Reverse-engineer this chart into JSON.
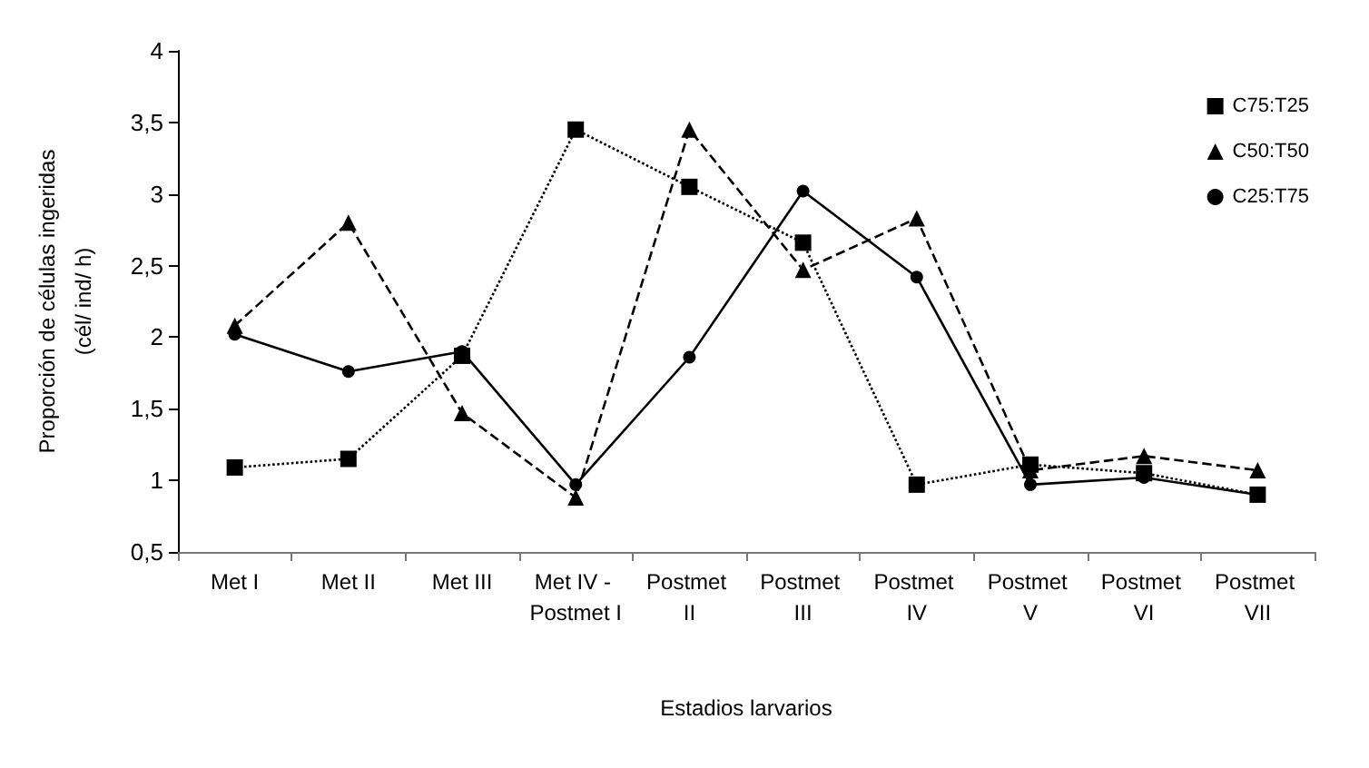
{
  "chart_data": {
    "type": "line",
    "xlabel": "Estadios larvarios",
    "ylabel": "Proporción de células ingeridas\n(cél/ ind/ h)",
    "categories": [
      "Met I",
      "Met II",
      "Met III",
      "Met IV - Postmet I",
      "Postmet II",
      "Postmet III",
      "Postmet IV",
      "Postmet V",
      "Postmet VI",
      "Postmet VII"
    ],
    "series": [
      {
        "name": "C75:T25",
        "color": "#000000",
        "marker": "square",
        "line_style": "dotted",
        "values": [
          1.09,
          1.15,
          1.87,
          3.45,
          3.05,
          2.66,
          0.97,
          1.11,
          1.05,
          0.9
        ]
      },
      {
        "name": "C50:T50",
        "color": "#000000",
        "marker": "triangle",
        "line_style": "dashed",
        "values": [
          2.08,
          2.8,
          1.47,
          0.88,
          3.45,
          2.47,
          2.83,
          1.07,
          1.17,
          1.07
        ]
      },
      {
        "name": "C25:T75",
        "color": "#000000",
        "marker": "circle",
        "line_style": "solid",
        "values": [
          2.02,
          1.76,
          1.9,
          0.97,
          1.86,
          3.02,
          2.42,
          0.97,
          1.02,
          0.9
        ]
      }
    ],
    "ylim": [
      0.5,
      4
    ],
    "yticks": [
      {
        "value": 0.5,
        "label": "0,5"
      },
      1,
      {
        "value": 1.5,
        "label": "1,5"
      },
      2,
      {
        "value": 2.5,
        "label": "2,5"
      },
      3,
      {
        "value": 3.5,
        "label": "3,5"
      },
      4
    ],
    "grid": false,
    "legend": "top right"
  }
}
